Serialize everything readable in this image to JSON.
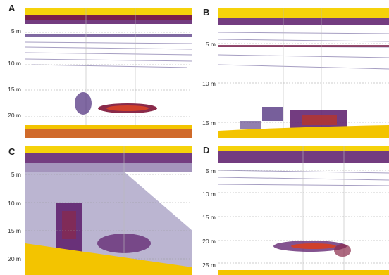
{
  "panels": [
    {
      "id": "A",
      "labels": [
        "5 m",
        "10 m",
        "15 m",
        "20 m"
      ]
    },
    {
      "id": "B",
      "labels": [
        "5 m",
        "10 m",
        "15 m"
      ]
    },
    {
      "id": "C",
      "labels": [
        "5 m",
        "10 m",
        "15 m",
        "20 m"
      ]
    },
    {
      "id": "D",
      "labels": [
        "5 m",
        "10 m",
        "15 m",
        "20 m",
        "25 m"
      ]
    }
  ],
  "colors": {
    "surface": "#f5d20a",
    "band": "#5a1a6a",
    "school": "#d0402a",
    "seabed": "#f3c400",
    "speckle": "#3b2a7a"
  }
}
